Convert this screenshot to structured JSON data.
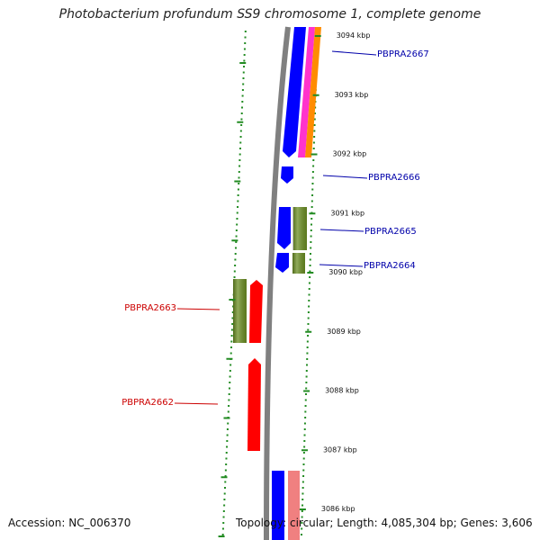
{
  "title": "Photobacterium profundum SS9 chromosome 1, complete genome",
  "footer": {
    "accession": "Accession: NC_006370",
    "summary": "Topology: circular; Length: 4,085,304 bp; Genes: 3,606"
  },
  "colors": {
    "backbone": "#808080",
    "tick": "#228B22",
    "forward_label": "#0000AA",
    "reverse_label": "#CC0000",
    "cds_blue": "#0000FF",
    "cds_magenta": "#FF33CC",
    "cds_orange": "#FF8C00",
    "cds_olive": "#6B8E23",
    "cds_red": "#FF0000",
    "cds_pink": "#F08080"
  },
  "scale": {
    "unit": "kbp",
    "ticks": [
      {
        "kbp": 3094,
        "label": "3094 kbp"
      },
      {
        "kbp": 3093,
        "label": "3093 kbp"
      },
      {
        "kbp": 3092,
        "label": "3092 kbp"
      },
      {
        "kbp": 3091,
        "label": "3091 kbp"
      },
      {
        "kbp": 3090,
        "label": "3090 kbp"
      },
      {
        "kbp": 3089,
        "label": "3089 kbp"
      },
      {
        "kbp": 3088,
        "label": "3088 kbp"
      },
      {
        "kbp": 3087,
        "label": "3087 kbp"
      },
      {
        "kbp": 3086,
        "label": "3086 kbp"
      }
    ]
  },
  "genes": {
    "forward_labels": [
      "PBPRA2667",
      "PBPRA2666",
      "PBPRA2665",
      "PBPRA2664"
    ],
    "reverse_labels": [
      "PBPRA2663",
      "PBPRA2662"
    ]
  }
}
